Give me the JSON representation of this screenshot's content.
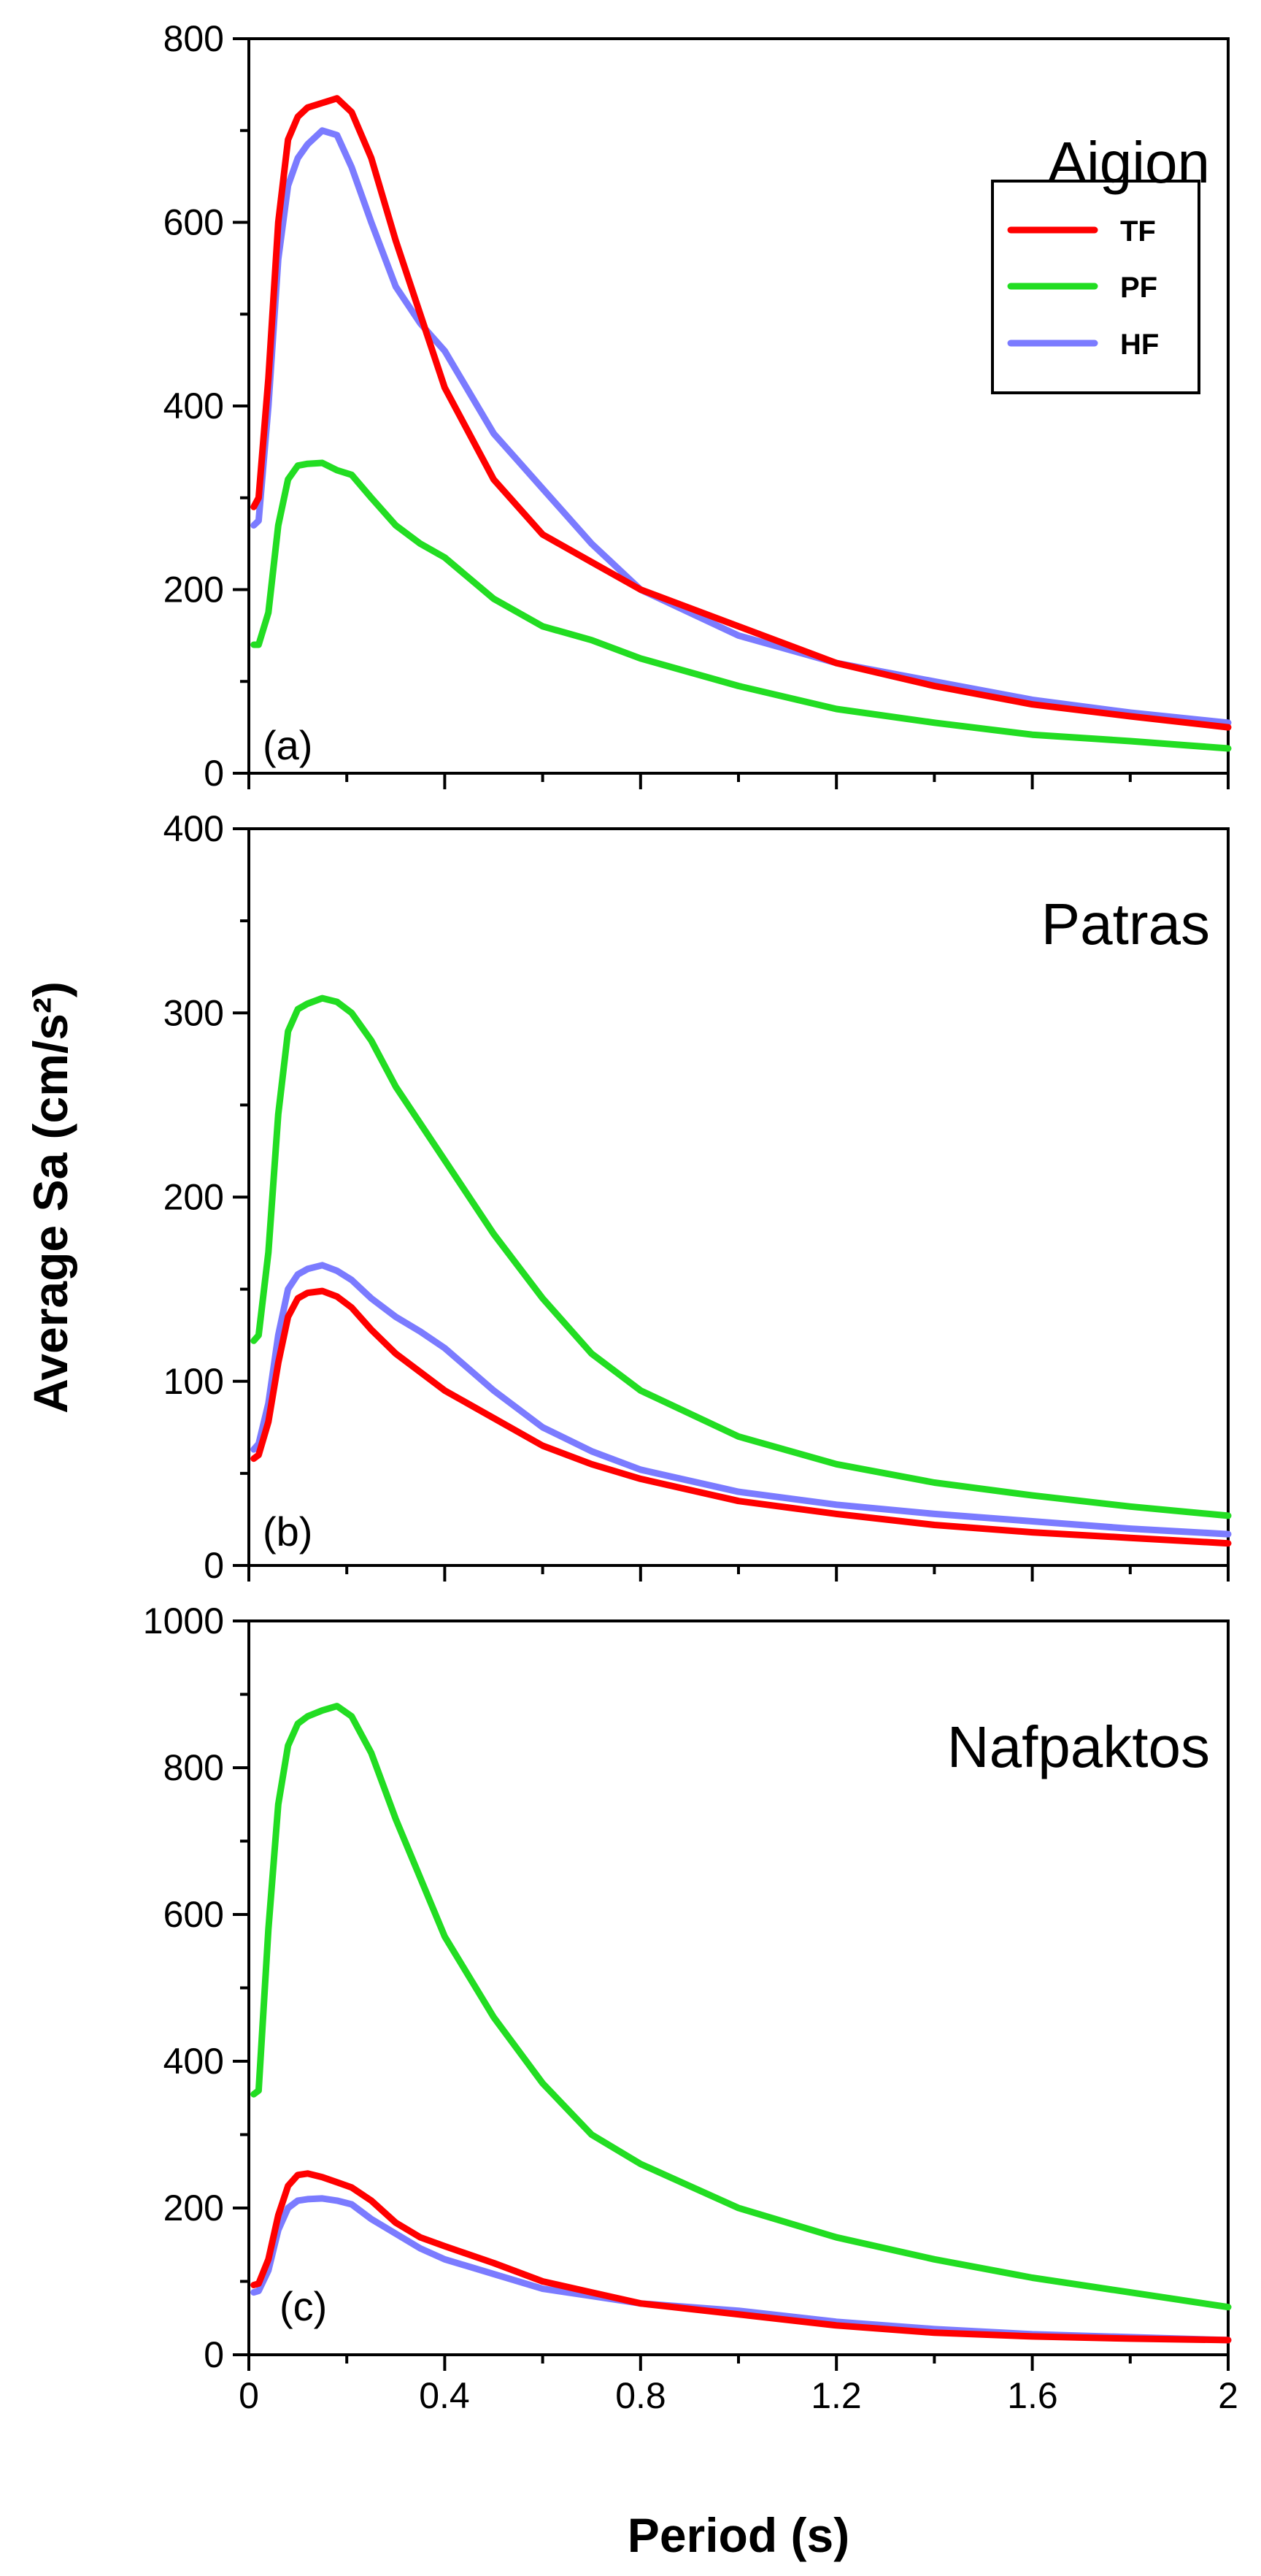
{
  "figure": {
    "ylabel": "Average Sa (cm/s²)",
    "xlabel": "Period (s)",
    "x_tick_labels": [
      "0",
      "0.4",
      "0.8",
      "1.2",
      "1.6",
      "2"
    ]
  },
  "legend": {
    "entries": [
      {
        "label": "TF",
        "color": "#ff0000"
      },
      {
        "label": "PF",
        "color": "#22dd22"
      },
      {
        "label": "HF",
        "color": "#7b7bff"
      }
    ]
  },
  "colors": {
    "TF": "#ff0000",
    "PF": "#22dd22",
    "HF": "#7b7bff"
  },
  "chart_data": [
    {
      "type": "line",
      "panel": "(a)",
      "station": "Aigion",
      "xlim": [
        0,
        2
      ],
      "ylim": [
        0,
        800
      ],
      "y_tick_labels": [
        "0",
        "200",
        "400",
        "600",
        "800"
      ],
      "legend": "top-right",
      "grid": false,
      "series": [
        {
          "name": "TF",
          "x": [
            0.01,
            0.02,
            0.04,
            0.06,
            0.08,
            0.1,
            0.12,
            0.15,
            0.18,
            0.21,
            0.25,
            0.3,
            0.35,
            0.4,
            0.5,
            0.6,
            0.7,
            0.8,
            1.0,
            1.2,
            1.4,
            1.6,
            1.8,
            2.0
          ],
          "y": [
            290,
            300,
            430,
            600,
            690,
            715,
            725,
            730,
            735,
            720,
            670,
            580,
            500,
            420,
            320,
            260,
            230,
            200,
            160,
            120,
            95,
            75,
            62,
            50
          ]
        },
        {
          "name": "PF",
          "x": [
            0.01,
            0.02,
            0.04,
            0.06,
            0.08,
            0.1,
            0.12,
            0.15,
            0.18,
            0.21,
            0.25,
            0.3,
            0.35,
            0.4,
            0.5,
            0.6,
            0.7,
            0.8,
            1.0,
            1.2,
            1.4,
            1.6,
            1.8,
            2.0
          ],
          "y": [
            140,
            140,
            175,
            270,
            320,
            335,
            337,
            338,
            330,
            325,
            300,
            270,
            250,
            235,
            190,
            160,
            145,
            125,
            95,
            70,
            55,
            42,
            35,
            27
          ]
        },
        {
          "name": "HF",
          "x": [
            0.01,
            0.02,
            0.04,
            0.06,
            0.08,
            0.1,
            0.12,
            0.15,
            0.18,
            0.21,
            0.25,
            0.3,
            0.35,
            0.4,
            0.5,
            0.6,
            0.7,
            0.8,
            1.0,
            1.2,
            1.4,
            1.6,
            1.8,
            2.0
          ],
          "y": [
            270,
            275,
            400,
            560,
            640,
            670,
            685,
            700,
            695,
            660,
            600,
            530,
            490,
            460,
            370,
            310,
            250,
            200,
            150,
            120,
            100,
            80,
            66,
            55
          ]
        }
      ]
    },
    {
      "type": "line",
      "panel": "(b)",
      "station": "Patras",
      "xlim": [
        0,
        2
      ],
      "ylim": [
        0,
        400
      ],
      "y_tick_labels": [
        "0",
        "100",
        "200",
        "300",
        "400"
      ],
      "grid": false,
      "series": [
        {
          "name": "TF",
          "x": [
            0.01,
            0.02,
            0.04,
            0.06,
            0.08,
            0.1,
            0.12,
            0.15,
            0.18,
            0.21,
            0.25,
            0.3,
            0.35,
            0.4,
            0.5,
            0.6,
            0.7,
            0.8,
            1.0,
            1.2,
            1.4,
            1.6,
            1.8,
            2.0
          ],
          "y": [
            58,
            60,
            78,
            110,
            135,
            145,
            148,
            149,
            146,
            140,
            128,
            115,
            105,
            95,
            80,
            65,
            55,
            47,
            35,
            28,
            22,
            18,
            15,
            12
          ]
        },
        {
          "name": "PF",
          "x": [
            0.01,
            0.02,
            0.04,
            0.06,
            0.08,
            0.1,
            0.12,
            0.15,
            0.18,
            0.21,
            0.25,
            0.3,
            0.35,
            0.4,
            0.5,
            0.6,
            0.7,
            0.8,
            1.0,
            1.2,
            1.4,
            1.6,
            1.8,
            2.0
          ],
          "y": [
            122,
            125,
            170,
            245,
            290,
            302,
            305,
            308,
            306,
            300,
            285,
            260,
            240,
            220,
            180,
            145,
            115,
            95,
            70,
            55,
            45,
            38,
            32,
            27
          ]
        },
        {
          "name": "HF",
          "x": [
            0.01,
            0.02,
            0.04,
            0.06,
            0.08,
            0.1,
            0.12,
            0.15,
            0.18,
            0.21,
            0.25,
            0.3,
            0.35,
            0.4,
            0.5,
            0.6,
            0.7,
            0.8,
            1.0,
            1.2,
            1.4,
            1.6,
            1.8,
            2.0
          ],
          "y": [
            63,
            66,
            88,
            125,
            150,
            158,
            161,
            163,
            160,
            155,
            145,
            135,
            127,
            118,
            95,
            75,
            62,
            52,
            40,
            33,
            28,
            24,
            20,
            17
          ]
        }
      ]
    },
    {
      "type": "line",
      "panel": "(c)",
      "station": "Nafpaktos",
      "xlim": [
        0,
        2
      ],
      "ylim": [
        0,
        1000
      ],
      "y_tick_labels": [
        "0",
        "200",
        "400",
        "600",
        "800",
        "1000"
      ],
      "grid": false,
      "series": [
        {
          "name": "TF",
          "x": [
            0.01,
            0.02,
            0.04,
            0.06,
            0.08,
            0.1,
            0.12,
            0.15,
            0.18,
            0.21,
            0.25,
            0.3,
            0.35,
            0.4,
            0.5,
            0.6,
            0.7,
            0.8,
            1.0,
            1.2,
            1.4,
            1.6,
            1.8,
            2.0
          ],
          "y": [
            95,
            97,
            130,
            190,
            230,
            245,
            247,
            242,
            235,
            228,
            210,
            180,
            160,
            148,
            125,
            100,
            85,
            70,
            55,
            40,
            30,
            25,
            22,
            20
          ]
        },
        {
          "name": "PF",
          "x": [
            0.01,
            0.02,
            0.04,
            0.06,
            0.08,
            0.1,
            0.12,
            0.15,
            0.18,
            0.21,
            0.25,
            0.3,
            0.35,
            0.4,
            0.5,
            0.6,
            0.7,
            0.8,
            1.0,
            1.2,
            1.4,
            1.6,
            1.8,
            2.0
          ],
          "y": [
            355,
            360,
            580,
            750,
            830,
            860,
            870,
            878,
            884,
            870,
            820,
            730,
            650,
            570,
            460,
            370,
            300,
            260,
            200,
            160,
            130,
            105,
            85,
            65
          ]
        },
        {
          "name": "HF",
          "x": [
            0.01,
            0.02,
            0.04,
            0.06,
            0.08,
            0.1,
            0.12,
            0.15,
            0.18,
            0.21,
            0.25,
            0.3,
            0.35,
            0.4,
            0.5,
            0.6,
            0.7,
            0.8,
            1.0,
            1.2,
            1.4,
            1.6,
            1.8,
            2.0
          ],
          "y": [
            85,
            87,
            115,
            170,
            200,
            210,
            212,
            213,
            210,
            205,
            185,
            165,
            145,
            130,
            110,
            90,
            80,
            70,
            60,
            45,
            35,
            28,
            24,
            20
          ]
        }
      ]
    }
  ]
}
